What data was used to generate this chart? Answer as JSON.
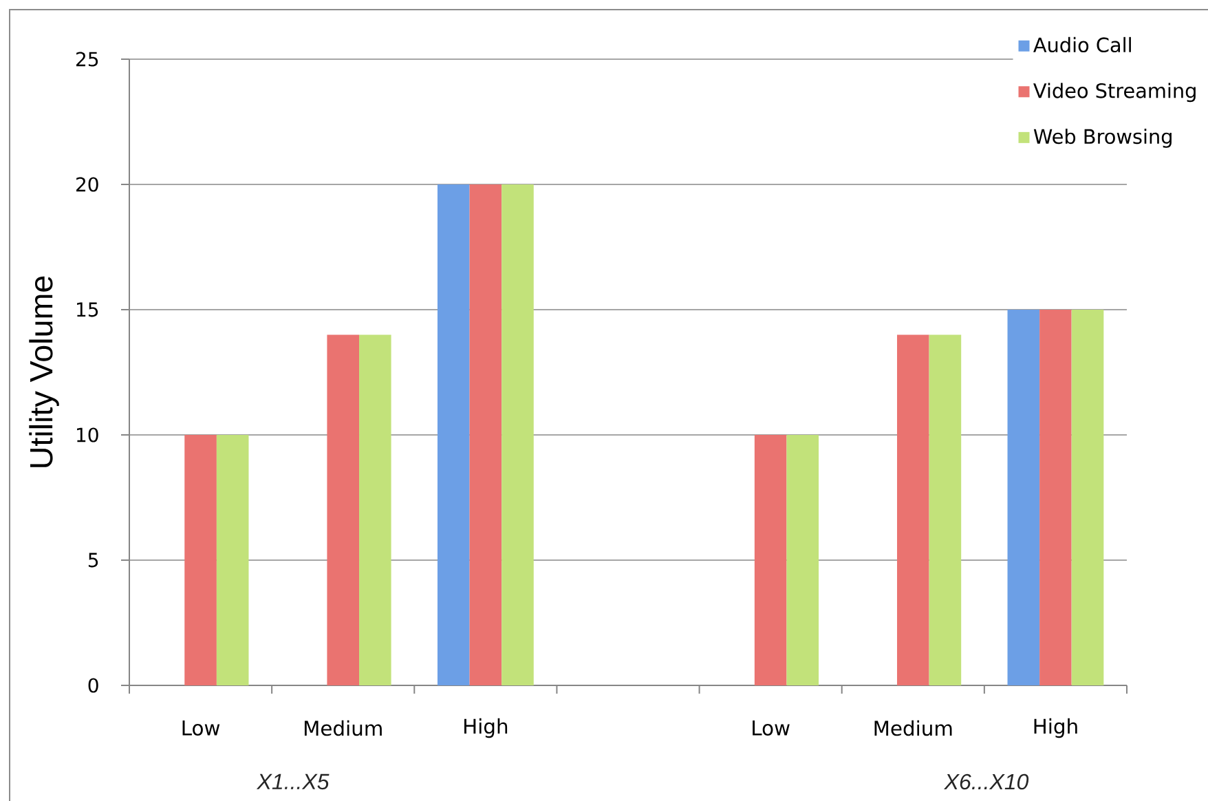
{
  "chart_data": {
    "type": "bar",
    "ylabel": "Utility Volume",
    "categories": [
      "Low",
      "Medium",
      "High",
      null,
      "Low",
      "Medium",
      "High"
    ],
    "series": [
      {
        "name": "Audio Call",
        "color": "#6c9fe6",
        "values": [
          null,
          null,
          20,
          null,
          null,
          null,
          15
        ]
      },
      {
        "name": "Video Streaming",
        "color": "#ea7370",
        "values": [
          10,
          14,
          20,
          null,
          10,
          14,
          15
        ]
      },
      {
        "name": "Web Browsing",
        "color": "#c2e27a",
        "values": [
          10,
          14,
          20,
          null,
          10,
          14,
          15
        ]
      }
    ],
    "ylim": [
      0,
      25
    ],
    "yticks": [
      0,
      5,
      10,
      15,
      20,
      25
    ],
    "grid": "y",
    "legend": "top right",
    "annotations": [
      "X1...X5",
      "X6...X10"
    ]
  }
}
